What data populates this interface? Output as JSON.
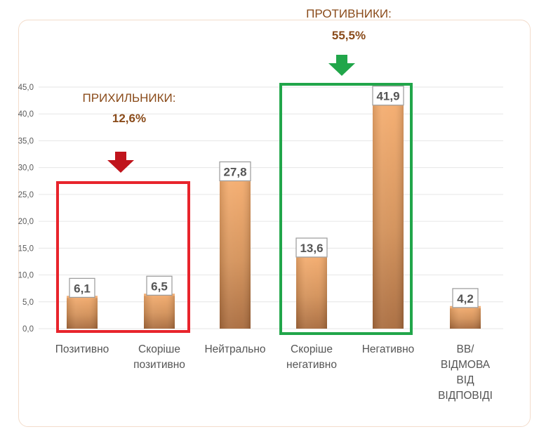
{
  "chart_data": {
    "type": "bar",
    "categories": [
      [
        "Позитивно"
      ],
      [
        "Скоріше",
        "позитивно"
      ],
      [
        "Нейтрально"
      ],
      [
        "Скоріше",
        "негативно"
      ],
      [
        "Негативно"
      ],
      [
        "ВВ/",
        "ВІДМОВА",
        "ВІД",
        "ВІДПОВІДІ"
      ]
    ],
    "values": [
      6.1,
      6.5,
      27.8,
      13.6,
      41.9,
      4.2
    ],
    "data_labels": [
      "6,1",
      "6,5",
      "27,8",
      "13,6",
      "41,9",
      "4,2"
    ],
    "ylim": [
      0,
      45
    ],
    "yticks": [
      "0,0",
      "5,0",
      "10,0",
      "15,0",
      "20,0",
      "25,0",
      "30,0",
      "35,0",
      "40,0",
      "45,0"
    ],
    "grid": true,
    "bar_color": "#c98a55",
    "groups": [
      {
        "title": "ПРИХИЛЬНИКИ:",
        "value": "12,6%",
        "categories": [
          0,
          1
        ],
        "box_color": "#e8242c",
        "arrow_color": "#c0141c"
      },
      {
        "title": "ПРОТИВНИКИ:",
        "value": "55,5%",
        "categories": [
          3,
          4
        ],
        "box_color": "#21a64a",
        "arrow_color": "#21a64a"
      }
    ]
  }
}
